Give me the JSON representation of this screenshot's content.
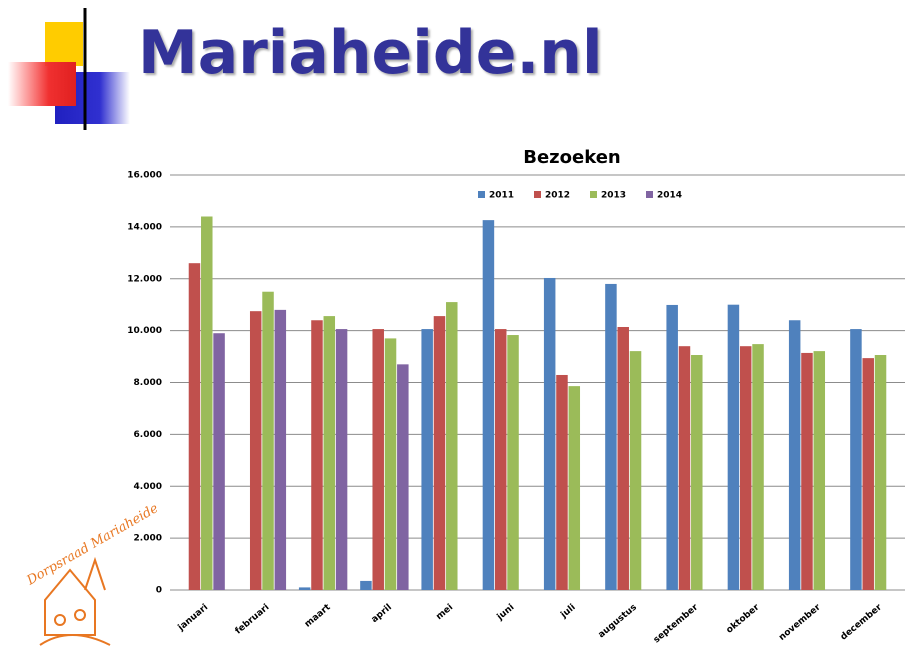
{
  "header": {
    "title": "Mariaheide.nl"
  },
  "logo": {
    "text": "Dorpsraad Mariaheide"
  },
  "chart_data": {
    "type": "bar",
    "title": "Bezoeken",
    "categories": [
      "januari",
      "februari",
      "maart",
      "april",
      "mei",
      "juni",
      "juli",
      "augustus",
      "september",
      "oktober",
      "november",
      "december"
    ],
    "series": [
      {
        "name": "2011",
        "color": "#4f81bd",
        "values": [
          null,
          null,
          100,
          350,
          10060,
          14260,
          12030,
          11800,
          10990,
          11000,
          10400,
          10060
        ]
      },
      {
        "name": "2012",
        "color": "#c0504d",
        "values": [
          12600,
          10750,
          10400,
          10060,
          10560,
          10060,
          8290,
          10140,
          9400,
          9400,
          9140,
          8940
        ]
      },
      {
        "name": "2013",
        "color": "#9bbb59",
        "values": [
          14400,
          11500,
          10560,
          9700,
          11100,
          9830,
          7860,
          9210,
          9060,
          9480,
          9210,
          9060
        ]
      },
      {
        "name": "2014",
        "color": "#8064a2",
        "values": [
          9900,
          10800,
          10060,
          8700,
          null,
          null,
          null,
          null,
          null,
          null,
          null,
          null
        ]
      }
    ],
    "ylim": [
      0,
      16000
    ],
    "yticks": [
      0,
      {
        "value": 2000,
        "label": "2.000"
      },
      {
        "value": 4000,
        "label": "4.000"
      },
      {
        "value": 6000,
        "label": "6.000"
      },
      {
        "value": 8000,
        "label": "8.000"
      },
      {
        "value": 10000,
        "label": "10.000"
      },
      {
        "value": 12000,
        "label": "12.000"
      },
      {
        "value": 14000,
        "label": "14.000"
      },
      {
        "value": 16000,
        "label": "16.000"
      }
    ],
    "grid": true,
    "legend": "top"
  }
}
